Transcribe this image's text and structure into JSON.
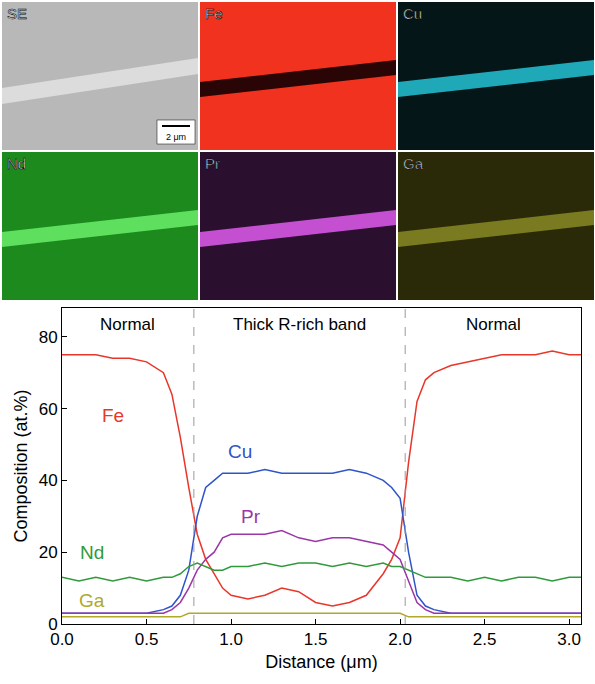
{
  "panels": {
    "maps": [
      {
        "label": "SE",
        "background": "#b8b8b8",
        "band": "#dcdcdc",
        "label_color": "#ffffff"
      },
      {
        "label": "Fe",
        "background": "#f0321e",
        "band": "#2a0505",
        "label_color": "#ffffff"
      },
      {
        "label": "Cu",
        "background": "#041618",
        "band": "#1fa9b8",
        "label_color": "#ffffff"
      },
      {
        "label": "Nd",
        "background": "#1d8a1d",
        "band": "#5ee05e",
        "label_color": "#ffffff"
      },
      {
        "label": "Pr",
        "background": "#2a0f2e",
        "band": "#c44fd0",
        "label_color": "#ffffff"
      },
      {
        "label": "Ga",
        "background": "#2a2a08",
        "band": "#7a7a20",
        "label_color": "#ffffff"
      }
    ],
    "scale_bar": "2 μm"
  },
  "chart_data": {
    "type": "line",
    "xlabel": "Distance (μm)",
    "ylabel": "Composition (at.%)",
    "xlim": [
      0,
      3.07
    ],
    "ylim": [
      0,
      88
    ],
    "xticks": [
      {
        "value": 0,
        "label": "0.0"
      },
      {
        "value": 0.5,
        "label": "0.5"
      },
      {
        "value": 1,
        "label": "1.0"
      },
      {
        "value": 1.5,
        "label": "1.5"
      },
      {
        "value": 2,
        "label": "2.0"
      },
      {
        "value": 2.5,
        "label": "2.5"
      },
      {
        "value": 3,
        "label": "3.0"
      }
    ],
    "yticks": [
      0,
      20,
      40,
      60,
      80
    ],
    "grid": false,
    "boundaries": [
      0.78,
      2.03
    ],
    "regions": [
      "Normal",
      "Thick R-rich band",
      "Normal"
    ],
    "x": [
      0,
      0.1,
      0.2,
      0.3,
      0.4,
      0.5,
      0.6,
      0.65,
      0.7,
      0.75,
      0.8,
      0.85,
      0.9,
      0.95,
      1.0,
      1.1,
      1.2,
      1.3,
      1.4,
      1.5,
      1.6,
      1.7,
      1.8,
      1.9,
      1.95,
      2.0,
      2.05,
      2.1,
      2.15,
      2.2,
      2.3,
      2.4,
      2.5,
      2.6,
      2.7,
      2.8,
      2.9,
      3.0,
      3.07
    ],
    "series": [
      {
        "name": "Fe",
        "color": "#e8372a",
        "values": [
          75,
          75,
          75,
          74,
          74,
          73,
          70,
          64,
          52,
          38,
          25,
          18,
          14,
          10,
          8,
          7,
          8,
          10,
          9,
          6,
          5,
          6,
          8,
          14,
          18,
          24,
          45,
          62,
          68,
          70,
          72,
          73,
          74,
          75,
          75,
          75,
          76,
          75,
          75
        ]
      },
      {
        "name": "Cu",
        "color": "#2e54c8",
        "values": [
          3,
          3,
          3,
          3,
          3,
          3,
          4,
          5,
          8,
          15,
          30,
          38,
          40,
          42,
          42,
          42,
          43,
          42,
          42,
          42,
          42,
          43,
          42,
          40,
          38,
          35,
          20,
          8,
          5,
          4,
          3,
          3,
          3,
          3,
          3,
          3,
          3,
          3,
          3
        ]
      },
      {
        "name": "Pr",
        "color": "#9b36a8",
        "values": [
          3,
          3,
          3,
          3,
          3,
          3,
          3,
          4,
          6,
          10,
          15,
          18,
          20,
          24,
          25,
          25,
          25,
          26,
          24,
          23,
          24,
          24,
          23,
          22,
          20,
          18,
          12,
          6,
          4,
          3,
          3,
          3,
          3,
          3,
          3,
          3,
          3,
          3,
          3
        ]
      },
      {
        "name": "Nd",
        "color": "#2f9a3a",
        "values": [
          13,
          12,
          13,
          12,
          13,
          12,
          13,
          13,
          14,
          16,
          17,
          16,
          15,
          15,
          16,
          16,
          17,
          16,
          17,
          17,
          16,
          17,
          16,
          17,
          16,
          16,
          15,
          14,
          13,
          13,
          13,
          12,
          13,
          12,
          13,
          13,
          12,
          13,
          13
        ]
      },
      {
        "name": "Ga",
        "color": "#b0a82a",
        "values": [
          2,
          2,
          2,
          2,
          2,
          2,
          2,
          2,
          2,
          3,
          3,
          3,
          3,
          3,
          3,
          3,
          3,
          3,
          3,
          3,
          3,
          3,
          3,
          3,
          3,
          3,
          2,
          2,
          2,
          2,
          2,
          2,
          2,
          2,
          2,
          2,
          2,
          2,
          2
        ]
      }
    ]
  }
}
